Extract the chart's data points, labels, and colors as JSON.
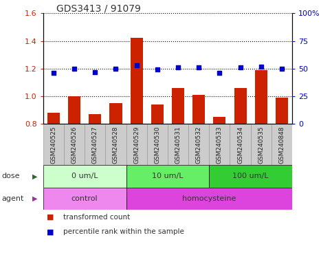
{
  "title": "GDS3413 / 91079",
  "samples": [
    "GSM240525",
    "GSM240526",
    "GSM240527",
    "GSM240528",
    "GSM240529",
    "GSM240530",
    "GSM240531",
    "GSM240532",
    "GSM240533",
    "GSM240534",
    "GSM240535",
    "GSM240848"
  ],
  "transformed_count": [
    0.88,
    1.0,
    0.87,
    0.95,
    1.42,
    0.94,
    1.06,
    1.01,
    0.85,
    1.06,
    1.19,
    0.99
  ],
  "percentile_rank": [
    46,
    50,
    47,
    50,
    53,
    49,
    51,
    51,
    46,
    51,
    52,
    50
  ],
  "bar_color": "#cc2200",
  "dot_color": "#0000cc",
  "ylim_left": [
    0.8,
    1.6
  ],
  "ylim_right": [
    0,
    100
  ],
  "yticks_left": [
    0.8,
    1.0,
    1.2,
    1.4,
    1.6
  ],
  "yticks_right": [
    0,
    25,
    50,
    75,
    100
  ],
  "ytick_labels_right": [
    "0",
    "25",
    "50",
    "75",
    "100%"
  ],
  "dose_groups": [
    {
      "label": "0 um/L",
      "start": 0,
      "end": 4,
      "color": "#ccffcc"
    },
    {
      "label": "10 um/L",
      "start": 4,
      "end": 8,
      "color": "#66ee66"
    },
    {
      "label": "100 um/L",
      "start": 8,
      "end": 12,
      "color": "#33cc33"
    }
  ],
  "agent_groups": [
    {
      "label": "control",
      "start": 0,
      "end": 4,
      "color": "#ee88ee"
    },
    {
      "label": "homocysteine",
      "start": 4,
      "end": 12,
      "color": "#dd44dd"
    }
  ],
  "dose_label": "dose",
  "agent_label": "agent",
  "legend_items": [
    {
      "color": "#cc2200",
      "label": "transformed count"
    },
    {
      "color": "#0000cc",
      "label": "percentile rank within the sample"
    }
  ],
  "grid_color": "#000000",
  "bg_color": "#ffffff",
  "xlabel_color_left": "#cc2200",
  "xlabel_color_right": "#0000cc",
  "sample_band_color": "#cccccc",
  "sample_band_border": "#999999"
}
